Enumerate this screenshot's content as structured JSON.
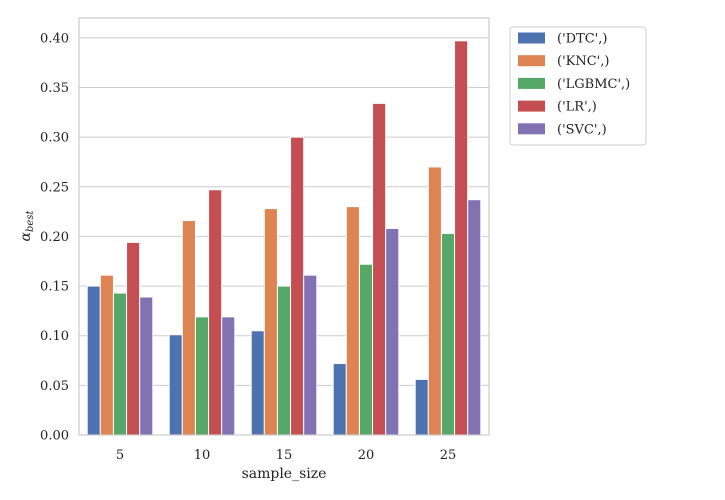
{
  "chart_data": {
    "type": "bar",
    "xlabel": "sample_size",
    "ylabel": "α_best",
    "categories": [
      "5",
      "10",
      "15",
      "20",
      "25"
    ],
    "ylim": [
      0,
      0.42
    ],
    "yticks": [
      0.0,
      0.05,
      0.1,
      0.15,
      0.2,
      0.25,
      0.3,
      0.35,
      0.4
    ],
    "ytick_labels": [
      "0.00",
      "0.05",
      "0.10",
      "0.15",
      "0.20",
      "0.25",
      "0.30",
      "0.35",
      "0.40"
    ],
    "grid": true,
    "legend_placement": "outside-upper-right",
    "series": [
      {
        "name": "('DTC',)",
        "color": "#4c72b0",
        "values": [
          0.15,
          0.101,
          0.105,
          0.072,
          0.056
        ]
      },
      {
        "name": "('KNC',)",
        "color": "#dd8452",
        "values": [
          0.161,
          0.216,
          0.228,
          0.23,
          0.27
        ]
      },
      {
        "name": "('LGBMC',)",
        "color": "#55a868",
        "values": [
          0.143,
          0.119,
          0.15,
          0.172,
          0.203
        ]
      },
      {
        "name": "('LR',)",
        "color": "#c44e52",
        "values": [
          0.194,
          0.247,
          0.3,
          0.334,
          0.397
        ]
      },
      {
        "name": "('SVC',)",
        "color": "#8172b3",
        "values": [
          0.139,
          0.119,
          0.161,
          0.208,
          0.237
        ]
      }
    ]
  }
}
